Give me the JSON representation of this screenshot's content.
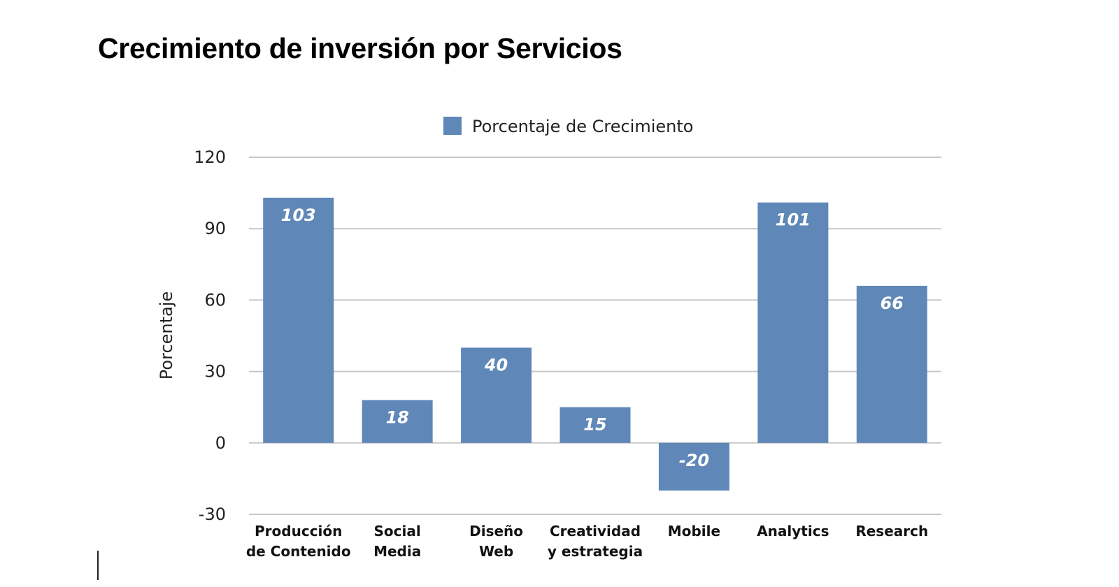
{
  "page": {
    "title": "Crecimiento de inversión por Servicios"
  },
  "chart_data": {
    "type": "bar",
    "title": "Crecimiento de inversión por Servicios",
    "categories": [
      [
        "Producción",
        "de Contenido"
      ],
      [
        "Social",
        "Media"
      ],
      [
        "Diseño",
        "Web"
      ],
      [
        "Creatividad",
        "y estrategia"
      ],
      [
        "Mobile"
      ],
      [
        "Analytics"
      ],
      [
        "Research"
      ]
    ],
    "series": [
      {
        "name": "Porcentaje de Crecimiento",
        "values": [
          103,
          18,
          40,
          15,
          -20,
          101,
          66
        ],
        "color": "#5f87b8"
      }
    ],
    "xlabel": "",
    "ylabel": "Porcentaje",
    "ylim": [
      -30,
      120
    ],
    "yticks": [
      120,
      90,
      60,
      30,
      0,
      -30
    ],
    "grid": true,
    "legend_position": "top-center",
    "data_labels": true,
    "gridline_color": "#c8c8c8"
  }
}
